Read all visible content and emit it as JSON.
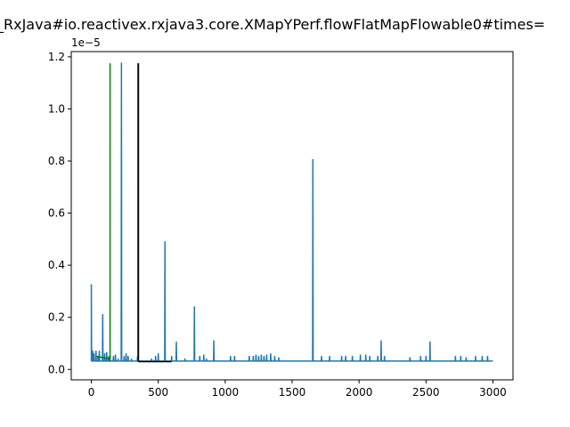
{
  "chart_data": {
    "type": "line",
    "title": "_RxJava#io.reactivex.rxjava3.core.XMapYPerf.flowFlatMapFlowable0#times=",
    "xlabel": "",
    "ylabel": "",
    "y_offset_label": "1e−5",
    "xlim": [
      -150,
      3150
    ],
    "ylim": [
      -4e-07,
      1.22e-05
    ],
    "x_ticks": [
      0,
      500,
      1000,
      1500,
      2000,
      2500,
      3000
    ],
    "x_tick_labels": [
      "0",
      "500",
      "1000",
      "1500",
      "2000",
      "2500",
      "3000"
    ],
    "y_ticks": [
      0,
      2e-06,
      4e-06,
      6e-06,
      8e-06,
      1e-05,
      1.2e-05
    ],
    "y_tick_labels": [
      "0.0",
      "0.2",
      "0.4",
      "0.6",
      "0.8",
      "1.0",
      "1.2"
    ],
    "grid": false,
    "colors": {
      "series": "#1f77b4",
      "green_line": "#008000",
      "red_line": "#ff0000",
      "black_line": "#000000"
    },
    "vertical_lines": [
      {
        "color": "#008000",
        "x": 140,
        "y": [
          3e-07,
          1.175e-05
        ]
      },
      {
        "color": "#ff0000",
        "x": 348,
        "y": [
          3e-07,
          1.175e-05
        ]
      },
      {
        "color": "#000000",
        "x": 352,
        "y": [
          3e-07,
          1.175e-05
        ]
      }
    ],
    "green_segment": {
      "x": [
        40,
        140
      ],
      "y": [
        5e-07,
        4e-07
      ]
    },
    "black_segment": {
      "x": [
        352,
        600
      ],
      "y": [
        3e-07,
        3e-07
      ]
    },
    "series": [
      {
        "baseline": 3.2e-07,
        "x_max": 3000,
        "spikes": [
          [
            0,
            3.25e-06
          ],
          [
            10,
            7e-07
          ],
          [
            20,
            6e-07
          ],
          [
            35,
            7e-07
          ],
          [
            50,
            5e-07
          ],
          [
            60,
            7e-07
          ],
          [
            85,
            2.1e-06
          ],
          [
            100,
            6e-07
          ],
          [
            115,
            6.5e-07
          ],
          [
            130,
            5e-07
          ],
          [
            165,
            5e-07
          ],
          [
            180,
            5.5e-07
          ],
          [
            200,
            4e-07
          ],
          [
            225,
            1.175e-05
          ],
          [
            245,
            5e-07
          ],
          [
            260,
            6e-07
          ],
          [
            275,
            5e-07
          ],
          [
            300,
            4e-07
          ],
          [
            345,
            5e-07
          ],
          [
            450,
            4e-07
          ],
          [
            480,
            5e-07
          ],
          [
            500,
            6e-07
          ],
          [
            550,
            4.9e-06
          ],
          [
            600,
            5e-07
          ],
          [
            635,
            1.05e-06
          ],
          [
            700,
            4e-07
          ],
          [
            770,
            2.4e-06
          ],
          [
            810,
            5e-07
          ],
          [
            840,
            5.5e-07
          ],
          [
            860,
            4e-07
          ],
          [
            915,
            1.1e-06
          ],
          [
            1040,
            5e-07
          ],
          [
            1070,
            5e-07
          ],
          [
            1180,
            5e-07
          ],
          [
            1210,
            5e-07
          ],
          [
            1230,
            5.5e-07
          ],
          [
            1250,
            5e-07
          ],
          [
            1270,
            5.5e-07
          ],
          [
            1290,
            5e-07
          ],
          [
            1310,
            5.5e-07
          ],
          [
            1340,
            6e-07
          ],
          [
            1370,
            5e-07
          ],
          [
            1400,
            4.5e-07
          ],
          [
            1655,
            8.05e-06
          ],
          [
            1720,
            5e-07
          ],
          [
            1780,
            5e-07
          ],
          [
            1870,
            5e-07
          ],
          [
            1900,
            5e-07
          ],
          [
            1950,
            5e-07
          ],
          [
            2010,
            5.5e-07
          ],
          [
            2050,
            5.5e-07
          ],
          [
            2080,
            5e-07
          ],
          [
            2140,
            5e-07
          ],
          [
            2165,
            1.1e-06
          ],
          [
            2190,
            5e-07
          ],
          [
            2380,
            4.5e-07
          ],
          [
            2460,
            5e-07
          ],
          [
            2500,
            5e-07
          ],
          [
            2530,
            1.05e-06
          ],
          [
            2720,
            5e-07
          ],
          [
            2760,
            5e-07
          ],
          [
            2800,
            4.5e-07
          ],
          [
            2870,
            5e-07
          ],
          [
            2920,
            5e-07
          ],
          [
            2960,
            5e-07
          ]
        ]
      }
    ]
  }
}
